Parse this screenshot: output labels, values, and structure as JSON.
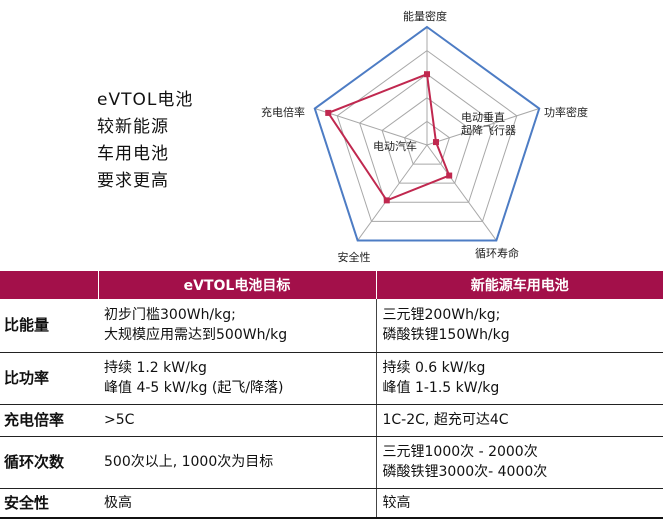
{
  "intro_lines": [
    "eVTOL电池",
    "较新能源",
    "车用电池",
    "要求更高"
  ],
  "chart_data": {
    "type": "radar",
    "axes": [
      "能量密度",
      "功率密度",
      "循环寿命",
      "安全性",
      "充电倍率"
    ],
    "series": [
      {
        "name": "电动垂直起降飞行器",
        "values": [
          0.6,
          0.08,
          0.32,
          0.58,
          0.88
        ],
        "color": "#c0284f"
      },
      {
        "name": "电动汽车",
        "values": [
          1,
          1,
          1,
          1,
          1
        ],
        "color": "#4d7cc4"
      }
    ],
    "legend_labels": [
      "电动垂直",
      "起降飞行器",
      "电动汽车"
    ],
    "grid_levels": 5,
    "grid_color": "#a8a8a8"
  },
  "table": {
    "headers": [
      "",
      "eVTOL电池目标",
      "新能源车用电池"
    ],
    "rows": [
      {
        "label": "比能量",
        "col1": [
          "初步门槛300Wh/kg;",
          "大规模应用需达到500Wh/kg"
        ],
        "col2": [
          "三元锂200Wh/kg;",
          "磷酸铁锂150Wh/kg"
        ]
      },
      {
        "label": "比功率",
        "col1": [
          "持续 1.2 kW/kg",
          "峰值 4-5 kW/kg (起飞/降落)"
        ],
        "col2": [
          "持续 0.6 kW/kg",
          "峰值 1-1.5 kW/kg"
        ]
      },
      {
        "label": "充电倍率",
        "col1": [
          ">5C"
        ],
        "col2": [
          "1C-2C, 超充可达4C"
        ]
      },
      {
        "label": "循环次数",
        "col1": [
          "500次以上, 1000次为目标"
        ],
        "col2": [
          "三元锂1000次 - 2000次",
          "磷酸铁锂3000次- 4000次"
        ]
      },
      {
        "label": "安全性",
        "col1": [
          "极高"
        ],
        "col2": [
          "较高"
        ]
      }
    ]
  },
  "colors": {
    "header_bg": "#a3104a",
    "header_text": "#ffffff"
  }
}
